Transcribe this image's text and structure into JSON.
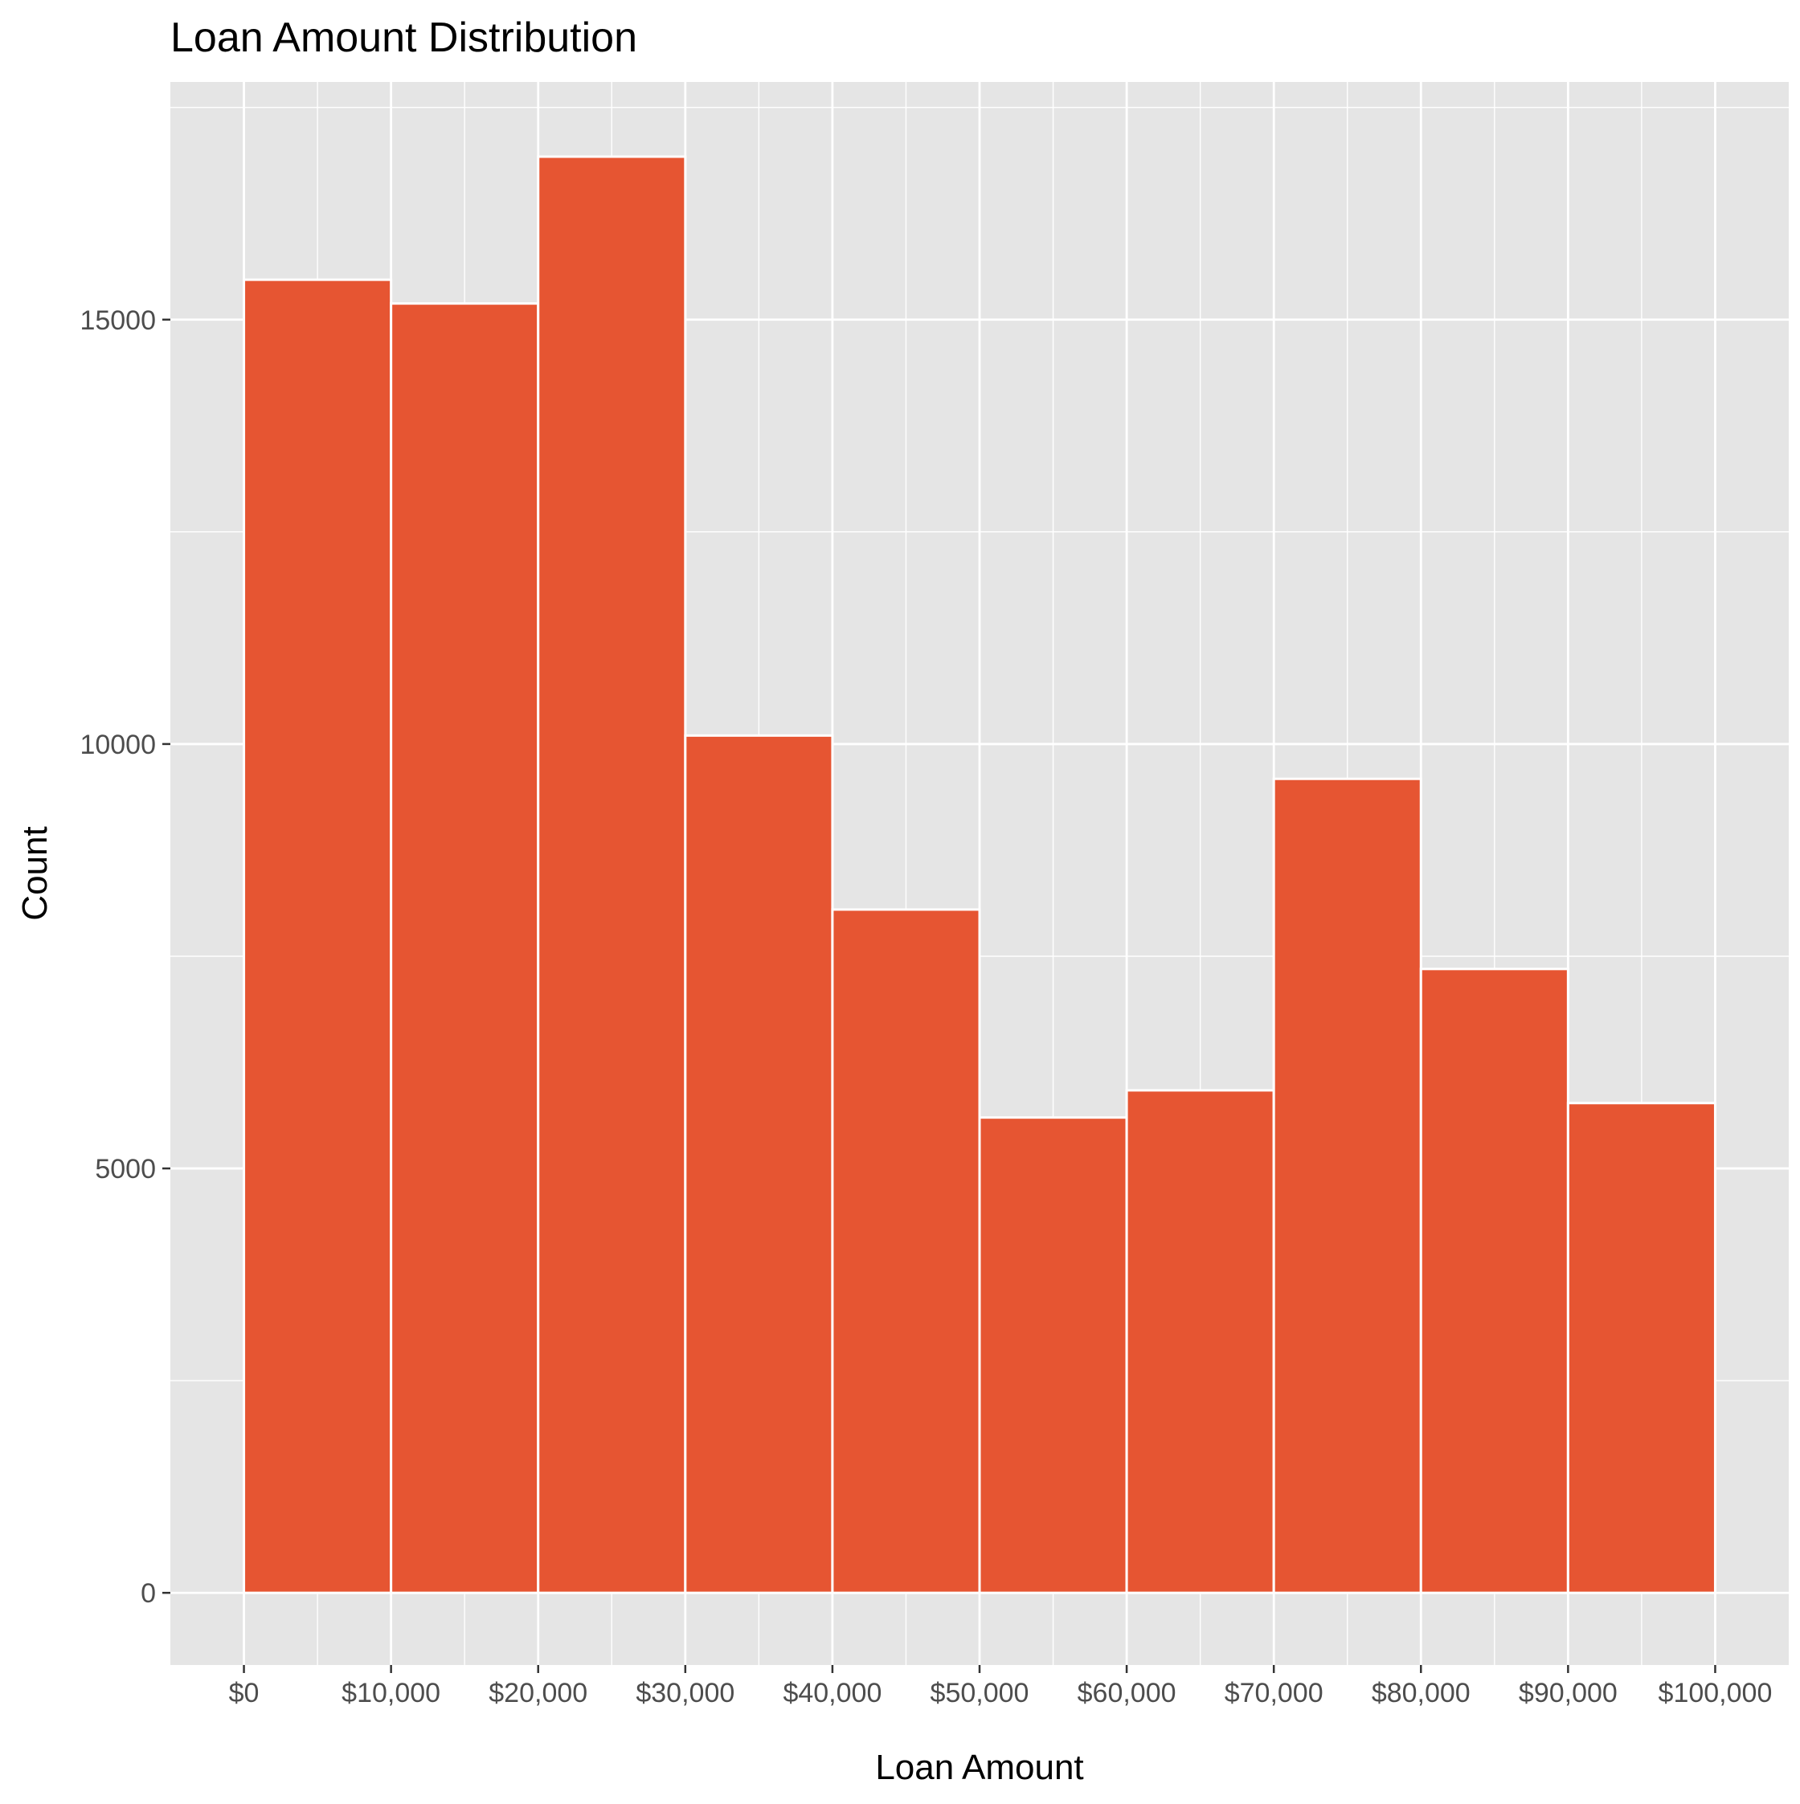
{
  "chart_data": {
    "type": "bar",
    "title": "Loan Amount Distribution",
    "xlabel": "Loan Amount",
    "ylabel": "Count",
    "bins": [
      {
        "start": 0,
        "end": 10000,
        "count": 15470
      },
      {
        "start": 10000,
        "end": 20000,
        "count": 15190
      },
      {
        "start": 20000,
        "end": 30000,
        "count": 16920
      },
      {
        "start": 30000,
        "end": 40000,
        "count": 10100
      },
      {
        "start": 40000,
        "end": 50000,
        "count": 8050
      },
      {
        "start": 50000,
        "end": 60000,
        "count": 5600
      },
      {
        "start": 60000,
        "end": 70000,
        "count": 5920
      },
      {
        "start": 70000,
        "end": 80000,
        "count": 9590
      },
      {
        "start": 80000,
        "end": 90000,
        "count": 7350
      },
      {
        "start": 90000,
        "end": 100000,
        "count": 5770
      }
    ],
    "xlim": [
      -5000,
      105000
    ],
    "ylim": [
      -850,
      17800
    ],
    "x_ticks": [
      0,
      10000,
      20000,
      30000,
      40000,
      50000,
      60000,
      70000,
      80000,
      90000,
      100000
    ],
    "x_tick_labels": [
      "$0",
      "$10,000",
      "$20,000",
      "$30,000",
      "$40,000",
      "$50,000",
      "$60,000",
      "$70,000",
      "$80,000",
      "$90,000",
      "$100,000"
    ],
    "y_ticks": [
      0,
      5000,
      10000,
      15000
    ],
    "y_tick_labels": [
      "0",
      "5000",
      "10000",
      "15000"
    ],
    "grid": true,
    "colors": {
      "bar_fill": "#E65532",
      "bar_outline": "#ffffff",
      "panel_background": "#E5E5E5",
      "grid_line": "#ffffff",
      "text": "#000000",
      "tick_text": "#4D4D4D"
    }
  }
}
